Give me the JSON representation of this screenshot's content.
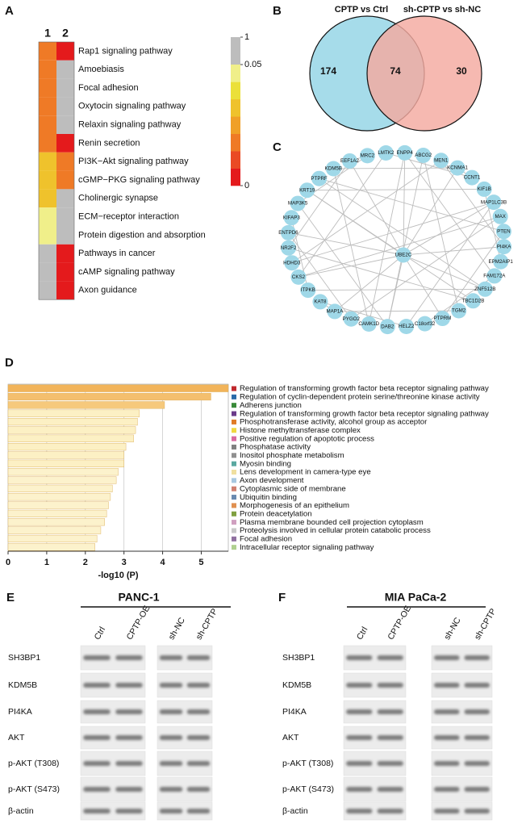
{
  "chart_data": [
    {
      "panel": "A",
      "type": "heatmap",
      "categories": [
        "Rap1 signaling pathway",
        "Amoebiasis",
        "Focal adhesion",
        "Oxytocin signaling pathway",
        "Relaxin signaling pathway",
        "Renin secretion",
        "PI3K−Akt signaling pathway",
        "cGMP−PKG signaling pathway",
        "Cholinergic synapse",
        "ECM−receptor interaction",
        "Protein digestion and absorption",
        "Pathways in cancer",
        "cAMP signaling pathway",
        "Axon guidance"
      ],
      "series": [
        {
          "name": "1",
          "values": [
            0.02,
            0.02,
            0.02,
            0.02,
            0.02,
            0.02,
            0.03,
            0.03,
            0.03,
            0.045,
            0.045,
            1,
            1,
            1
          ]
        },
        {
          "name": "2",
          "values": [
            0.002,
            1,
            1,
            1,
            1,
            0.002,
            0.02,
            0.02,
            1,
            1,
            1,
            0.002,
            0.002,
            0.002
          ]
        }
      ],
      "colorbar_ticks": [
        1,
        0.05,
        0
      ],
      "colorscale": [
        "#e41a1c",
        "#ea4a24",
        "#ef7a26",
        "#f0a028",
        "#efc22c",
        "#ebe03a",
        "#f0ef8a"
      ],
      "na_color": "#bdbdbd"
    },
    {
      "panel": "B",
      "type": "venn",
      "sets": [
        {
          "name": "CPTP vs Ctrl",
          "color": "#a6dcea"
        },
        {
          "name": "sh-CPTP vs sh-NC",
          "color": "#f4a9a0"
        }
      ],
      "values": [
        174,
        74,
        30
      ]
    },
    {
      "panel": "D",
      "type": "barh",
      "categories": [
        "Regulation of transforming growth factor beta receptor signaling pathway",
        "Regulation of cyclin-dependent protein serine/threonine kinase activity",
        "Adherens junction",
        "Regulation of transforming growth factor beta receptor signaling pathway",
        "Phosphotransferase activity, alcohol group as acceptor",
        "Histone methyltransferase complex",
        "Positive regulation of apoptotic process",
        "Phosphatase activity",
        "Inositol phosphate metabolism",
        "Myosin binding",
        "Lens development in camera-type eye",
        "Axon development",
        "Cytoplasmic side of membrane",
        "Ubiquitin binding",
        "Morphogenesis of an epithelium",
        "Protein deacetylation",
        "Plasma membrane bounded cell projection cytoplasm",
        "Proteolysis involved in cellular protein catabolic process",
        "Focal adhesion",
        "Intracellular receptor signaling pathway"
      ],
      "values": [
        5.7,
        5.25,
        4.05,
        3.4,
        3.35,
        3.3,
        3.25,
        3.05,
        3.0,
        3.0,
        2.85,
        2.8,
        2.7,
        2.65,
        2.6,
        2.55,
        2.5,
        2.4,
        2.3,
        2.25
      ],
      "colors": [
        "#f2b45a",
        "#f4bf6e",
        "#f6c97c",
        "#fcf0c4",
        "#fcf0c4",
        "#fcf0c4",
        "#fcf0c4",
        "#fcf0c4",
        "#fcf0c4",
        "#fcf0c4",
        "#fcf2cc",
        "#fcf2cc",
        "#fcf2cc",
        "#fcf2cc",
        "#fcf2cc",
        "#fcf2cc",
        "#fcf2cc",
        "#fcf2cc",
        "#fcf2cc",
        "#fcf2cc"
      ],
      "legend_colors": [
        "#c0282d",
        "#2a6aa8",
        "#3a8a3a",
        "#6b3b8a",
        "#e07b27",
        "#f0d840",
        "#d86aa0",
        "#808080",
        "#909090",
        "#5aa8a0",
        "#f0e0a0",
        "#a8c8e0",
        "#d08070",
        "#6a8ab0",
        "#e09050",
        "#80a040",
        "#d0a0c0",
        "#c8c8c8",
        "#9070a0",
        "#b0d090"
      ],
      "xlim": [
        0,
        5.7
      ],
      "xticks": [
        0,
        1,
        2,
        3,
        4,
        5
      ],
      "xlabel": "-log10 (P)",
      "grid": true
    }
  ],
  "network": {
    "panel": "C",
    "center": "UBE2C",
    "nodes": [
      "ENPP4",
      "ABCG2",
      "MEN1",
      "KCNMA1",
      "CCNT1",
      "KIF1B",
      "MAP1LC3B",
      "MAX",
      "PTEN",
      "PI4KA",
      "EPM2AIP1",
      "FAM172A",
      "ZNF512B",
      "TBC1D2B",
      "TGM2",
      "PTPRM",
      "C18orf32",
      "HELZ2",
      "DAB2",
      "CAMK1D",
      "PYGO2",
      "MAP1A",
      "KAT8",
      "ITPKB",
      "CKS2",
      "HDHD3",
      "NR2F2",
      "ENTPD6",
      "KIFAP3",
      "MAP3K5",
      "KRT19",
      "PTPRF",
      "KDM5B",
      "EEF1A2",
      "MRC2",
      "LMTK2"
    ]
  },
  "blots": [
    {
      "panel": "E",
      "title": "PANC-1",
      "groups": [
        [
          "Ctrl",
          "CPTP-OE"
        ],
        [
          "sh-NC",
          "sh-CPTP"
        ]
      ],
      "rows": [
        "SH3BP1",
        "KDM5B",
        "PI4KA",
        "AKT",
        "p-AKT (T308)",
        "p-AKT (S473)",
        "β-actin"
      ]
    },
    {
      "panel": "F",
      "title": "MIA PaCa-2",
      "groups": [
        [
          "Ctrl",
          "CPTP-OE"
        ],
        [
          "sh-NC",
          "sh-CPTP"
        ]
      ],
      "rows": [
        "SH3BP1",
        "KDM5B",
        "PI4KA",
        "AKT",
        "p-AKT (T308)",
        "p-AKT (S473)",
        "β-actin"
      ]
    }
  ]
}
